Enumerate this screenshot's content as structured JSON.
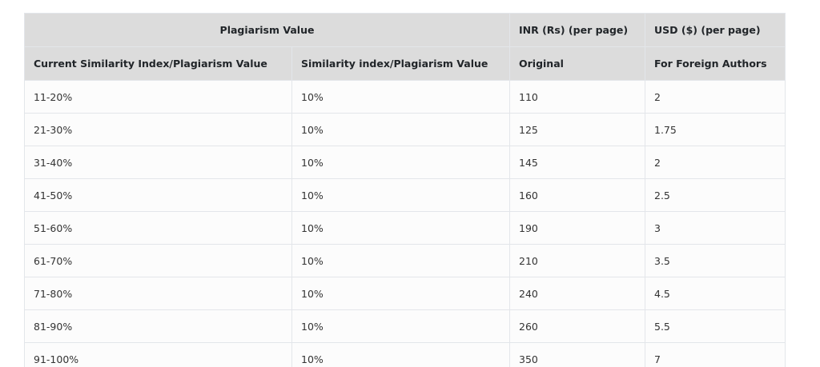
{
  "table": {
    "group_header": {
      "plagiarism": "Plagiarism Value",
      "inr": "INR (Rs) (per page)",
      "usd": "USD ($) (per page)"
    },
    "sub_header": {
      "current_index": "Current Similarity Index/Plagiarism Value",
      "similarity_index": "Similarity index/Plagiarism Value",
      "original": "Original",
      "foreign": "For Foreign Authors"
    },
    "rows": [
      {
        "range": "11-20%",
        "target": "10%",
        "inr": "110",
        "usd": "2"
      },
      {
        "range": "21-30%",
        "target": "10%",
        "inr": "125",
        "usd": "1.75"
      },
      {
        "range": "31-40%",
        "target": "10%",
        "inr": "145",
        "usd": "2"
      },
      {
        "range": "41-50%",
        "target": "10%",
        "inr": "160",
        "usd": "2.5"
      },
      {
        "range": "51-60%",
        "target": "10%",
        "inr": "190",
        "usd": "3"
      },
      {
        "range": "61-70%",
        "target": "10%",
        "inr": "210",
        "usd": "3.5"
      },
      {
        "range": "71-80%",
        "target": "10%",
        "inr": "240",
        "usd": "4.5"
      },
      {
        "range": "81-90%",
        "target": "10%",
        "inr": "260",
        "usd": "5.5"
      },
      {
        "range": "91-100%",
        "target": "10%",
        "inr": "350",
        "usd": "7"
      }
    ]
  },
  "colors": {
    "header_bg": "#dcdcdc",
    "row_bg": "#fcfcfc",
    "border": "#e3e6ea",
    "text": "#333333"
  }
}
